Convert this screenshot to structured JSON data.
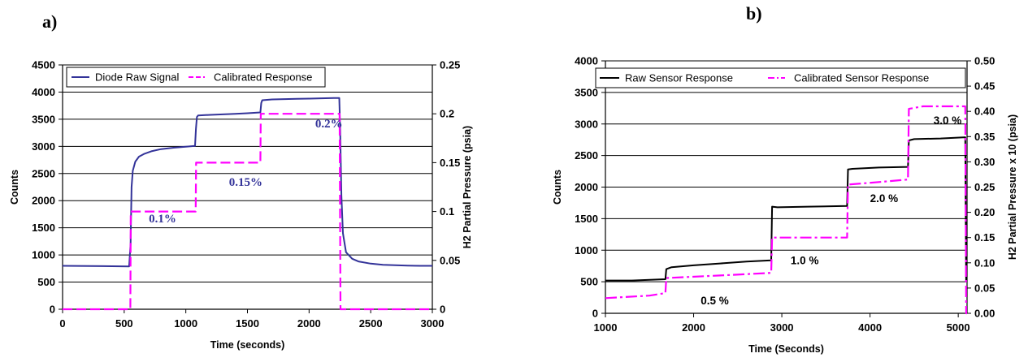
{
  "chart_data": [
    {
      "type": "line",
      "panel_label": "a)",
      "xlabel": "Time (seconds)",
      "ylabel": "Counts",
      "y2label": "H2 Partial Pressure (psia)",
      "xlim": [
        0,
        3000
      ],
      "ylim": [
        0,
        4500
      ],
      "y2lim": [
        0,
        0.25
      ],
      "x_ticks": [
        "0",
        "500",
        "1000",
        "1500",
        "2000",
        "2500",
        "3000"
      ],
      "y_ticks": [
        "0",
        "500",
        "1000",
        "1500",
        "2000",
        "2500",
        "3000",
        "3500",
        "4000",
        "4500"
      ],
      "y2_ticks": [
        "0",
        "0.05",
        "0.1",
        "0.15",
        "0.2",
        "0.25"
      ],
      "grid": "horizontal",
      "legend_position": "top",
      "series": [
        {
          "name": "Diode Raw Signal",
          "axis": "left",
          "color": "#333399",
          "style": "solid",
          "x": [
            0,
            540,
            552,
            560,
            570,
            590,
            620,
            660,
            720,
            800,
            900,
            1000,
            1075,
            1082,
            1090,
            1100,
            1200,
            1300,
            1400,
            1500,
            1605,
            1612,
            1620,
            1700,
            1800,
            1900,
            2000,
            2100,
            2200,
            2245,
            2252,
            2262,
            2275,
            2300,
            2350,
            2400,
            2500,
            2600,
            2700,
            2800,
            2900,
            3000
          ],
          "y": [
            800,
            790,
            1200,
            2250,
            2550,
            2720,
            2810,
            2860,
            2910,
            2950,
            2975,
            2995,
            3010,
            3320,
            3540,
            3570,
            3580,
            3590,
            3600,
            3610,
            3625,
            3800,
            3850,
            3865,
            3870,
            3875,
            3880,
            3885,
            3890,
            3890,
            3300,
            2100,
            1400,
            1050,
            930,
            880,
            840,
            820,
            810,
            805,
            800,
            800
          ]
        },
        {
          "name": "Calibrated Response",
          "axis": "right",
          "color": "#ff00ff",
          "style": "dashed",
          "x": [
            0,
            550,
            553,
            1080,
            1083,
            1605,
            1608,
            2248,
            2255,
            3000
          ],
          "y": [
            0,
            0,
            0.1,
            0.1,
            0.15,
            0.15,
            0.2,
            0.2,
            0,
            0
          ]
        }
      ],
      "annotations": [
        {
          "text": "0.1%",
          "x": 700,
          "y": 1600
        },
        {
          "text": "0.15%",
          "x": 1350,
          "y": 2270
        },
        {
          "text": "0.2%",
          "x": 2050,
          "y": 3350
        }
      ]
    },
    {
      "type": "line",
      "panel_label": "b)",
      "xlabel": "Time (Seconds)",
      "ylabel": "Counts",
      "y2label": "H2 Partial Pressure x 10 (psia)",
      "xlim": [
        1000,
        5100
      ],
      "ylim": [
        0,
        4000
      ],
      "y2lim": [
        0,
        0.5
      ],
      "x_ticks": [
        "1000",
        "2000",
        "3000",
        "4000",
        "5000"
      ],
      "y_ticks": [
        "0",
        "500",
        "1000",
        "1500",
        "2000",
        "2500",
        "3000",
        "3500",
        "4000"
      ],
      "y2_ticks": [
        "0.00",
        "0.05",
        "0.10",
        "0.15",
        "0.20",
        "0.25",
        "0.30",
        "0.35",
        "0.40",
        "0.45",
        "0.50"
      ],
      "grid": "horizontal",
      "legend_position": "top",
      "series": [
        {
          "name": "Raw Sensor Response",
          "axis": "left",
          "color": "#000000",
          "style": "solid",
          "x": [
            1000,
            1300,
            1680,
            1690,
            1750,
            2000,
            2300,
            2600,
            2880,
            2890,
            2950,
            3300,
            3740,
            3750,
            3800,
            4100,
            4430,
            4440,
            4500,
            4800,
            5080,
            5090,
            5100
          ],
          "y": [
            520,
            520,
            540,
            700,
            730,
            760,
            790,
            820,
            840,
            1690,
            1680,
            1690,
            1700,
            2280,
            2290,
            2310,
            2320,
            2740,
            2760,
            2770,
            2790,
            500,
            1100
          ]
        },
        {
          "name": "Calibrated Sensor Response",
          "axis": "right",
          "color": "#ff00ff",
          "style": "dashed",
          "x": [
            1000,
            1500,
            1680,
            1690,
            2300,
            2880,
            2890,
            3300,
            3740,
            3750,
            4100,
            4430,
            4440,
            4600,
            5080,
            5090,
            5100
          ],
          "y": [
            0.03,
            0.035,
            0.04,
            0.07,
            0.075,
            0.08,
            0.15,
            0.15,
            0.15,
            0.255,
            0.26,
            0.265,
            0.405,
            0.41,
            0.41,
            0.0,
            0.0
          ]
        }
      ],
      "annotations": [
        {
          "text": "0.5 %",
          "x": 2080,
          "y": 140
        },
        {
          "text": "1.0 %",
          "x": 3100,
          "y": 780
        },
        {
          "text": "2.0 %",
          "x": 4000,
          "y": 1760
        },
        {
          "text": "3.0 %",
          "x": 4720,
          "y": 3000
        }
      ]
    }
  ]
}
